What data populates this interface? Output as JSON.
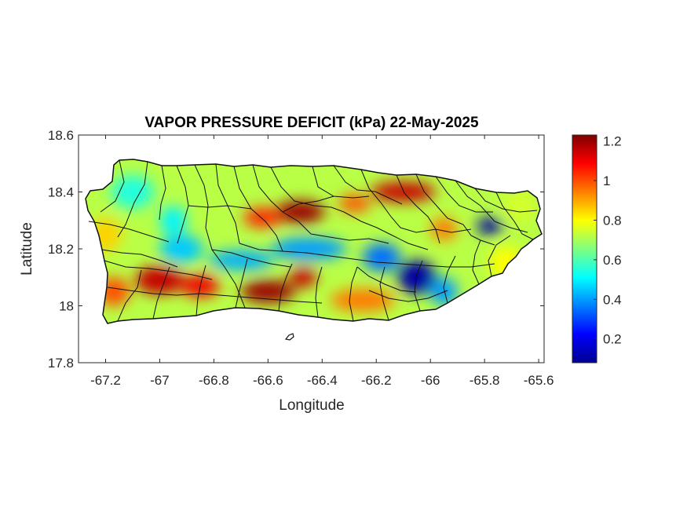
{
  "chart_data": {
    "type": "heatmap",
    "title": "VAPOR PRESSURE DEFICIT (kPa) 22-May-2025",
    "xlabel": "Longitude",
    "ylabel": "Latitude",
    "xlim": [
      -67.3,
      -65.58
    ],
    "ylim": [
      17.8,
      18.6
    ],
    "xticks": [
      -67.2,
      -67,
      -66.8,
      -66.6,
      -66.4,
      -66.2,
      -66,
      -65.8,
      -65.6
    ],
    "yticks": [
      17.8,
      18,
      18.2,
      18.4,
      18.6
    ],
    "colorbar": {
      "colormap": "jet",
      "range": [
        0.08,
        1.23
      ],
      "ticks": [
        0.2,
        0.4,
        0.6,
        0.8,
        1,
        1.2
      ]
    },
    "base_value": 0.72,
    "features": [
      {
        "lon": -67.0,
        "lat": 18.09,
        "value": 1.15,
        "slon": 0.09,
        "slat": 0.05
      },
      {
        "lon": -66.85,
        "lat": 18.07,
        "value": 1.1,
        "slon": 0.07,
        "slat": 0.04
      },
      {
        "lon": -66.6,
        "lat": 18.05,
        "value": 1.2,
        "slon": 0.1,
        "slat": 0.04
      },
      {
        "lon": -66.47,
        "lat": 18.1,
        "value": 1.15,
        "slon": 0.05,
        "slat": 0.035
      },
      {
        "lon": -67.17,
        "lat": 18.05,
        "value": 1.0,
        "slon": 0.06,
        "slat": 0.05
      },
      {
        "lon": -66.25,
        "lat": 18.02,
        "value": 0.95,
        "slon": 0.12,
        "slat": 0.04
      },
      {
        "lon": -66.48,
        "lat": 18.33,
        "value": 1.2,
        "slon": 0.09,
        "slat": 0.04
      },
      {
        "lon": -66.62,
        "lat": 18.31,
        "value": 1.05,
        "slon": 0.07,
        "slat": 0.035
      },
      {
        "lon": -66.1,
        "lat": 18.4,
        "value": 1.15,
        "slon": 0.12,
        "slat": 0.035
      },
      {
        "lon": -66.28,
        "lat": 18.36,
        "value": 1.0,
        "slon": 0.06,
        "slat": 0.03
      },
      {
        "lon": -65.95,
        "lat": 18.27,
        "value": 0.95,
        "slon": 0.05,
        "slat": 0.04
      },
      {
        "lon": -65.78,
        "lat": 18.28,
        "value": 0.12,
        "slon": 0.05,
        "slat": 0.03
      },
      {
        "lon": -66.05,
        "lat": 18.1,
        "value": 0.12,
        "slon": 0.07,
        "slat": 0.06
      },
      {
        "lon": -66.18,
        "lat": 18.17,
        "value": 0.35,
        "slon": 0.07,
        "slat": 0.05
      },
      {
        "lon": -66.45,
        "lat": 18.2,
        "value": 0.4,
        "slon": 0.14,
        "slat": 0.04
      },
      {
        "lon": -66.7,
        "lat": 18.16,
        "value": 0.42,
        "slon": 0.12,
        "slat": 0.035
      },
      {
        "lon": -66.92,
        "lat": 18.2,
        "value": 0.45,
        "slon": 0.08,
        "slat": 0.05
      },
      {
        "lon": -66.95,
        "lat": 18.3,
        "value": 0.5,
        "slon": 0.05,
        "slat": 0.05
      },
      {
        "lon": -65.95,
        "lat": 18.05,
        "value": 0.4,
        "slon": 0.05,
        "slat": 0.05
      },
      {
        "lon": -67.1,
        "lat": 18.4,
        "value": 0.55,
        "slon": 0.08,
        "slat": 0.06
      },
      {
        "lon": -67.2,
        "lat": 18.25,
        "value": 0.85,
        "slon": 0.06,
        "slat": 0.06
      },
      {
        "lon": -65.67,
        "lat": 18.35,
        "value": 0.75,
        "slon": 0.06,
        "slat": 0.06
      },
      {
        "lon": -65.72,
        "lat": 18.15,
        "value": 0.8,
        "slon": 0.06,
        "slat": 0.06
      }
    ]
  }
}
